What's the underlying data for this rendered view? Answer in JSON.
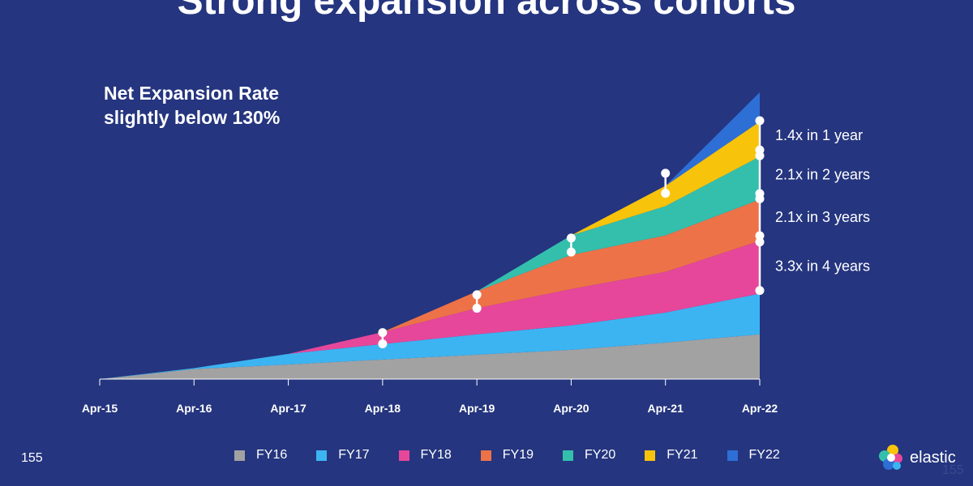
{
  "slide": {
    "title": "Strong expansion across cohorts",
    "subtitle_lines": [
      "Net Expansion Rate",
      "slightly below 130%"
    ],
    "page_number": "155",
    "ghost_page_number": "155",
    "logo_text": "elastic"
  },
  "colors": {
    "background": "#25357f",
    "FY16": "#a2a2a2",
    "FY17": "#3cb4f2",
    "FY18": "#e6479a",
    "FY19": "#ee7248",
    "FY20": "#34bfad",
    "FY21": "#f8c30b",
    "FY22": "#2e6fd6"
  },
  "chart_data": {
    "type": "area",
    "stacked": true,
    "x": [
      "Apr-15",
      "Apr-16",
      "Apr-17",
      "Apr-18",
      "Apr-19",
      "Apr-20",
      "Apr-21",
      "Apr-22"
    ],
    "ylim": [
      0,
      100
    ],
    "series": [
      {
        "name": "FY16",
        "color": "#a2a2a2",
        "values": [
          0,
          3.5,
          5.1,
          6.8,
          8.5,
          10.2,
          12.7,
          15.6
        ]
      },
      {
        "name": "FY17",
        "color": "#3cb4f2",
        "values": [
          0,
          0.3,
          3.7,
          5.4,
          7.1,
          8.5,
          10.5,
          14.2
        ]
      },
      {
        "name": "FY18",
        "color": "#e6479a",
        "values": [
          0,
          0,
          0,
          4.2,
          9.1,
          12.7,
          14.2,
          18.4
        ]
      },
      {
        "name": "FY19",
        "color": "#ee7248",
        "values": [
          0,
          0,
          0,
          0,
          5.9,
          11.9,
          12.7,
          14.4
        ]
      },
      {
        "name": "FY20",
        "color": "#34bfad",
        "values": [
          0,
          0,
          0,
          0,
          0,
          6.8,
          10.2,
          15.0
        ]
      },
      {
        "name": "FY21",
        "color": "#f8c30b",
        "values": [
          0,
          0,
          0,
          0,
          0,
          0,
          7.1,
          12.2
        ]
      },
      {
        "name": "FY22",
        "color": "#2e6fd6",
        "values": [
          0,
          0,
          0,
          0,
          0,
          0,
          0,
          10.2
        ]
      }
    ],
    "annotations": [
      {
        "text": "1.4x in 1 year",
        "x": "Apr-22",
        "from": 90.1,
        "to": 79.9
      },
      {
        "text": "2.1x in 2 years",
        "x": "Apr-22",
        "from": 77.9,
        "to": 64.7
      },
      {
        "text": "2.1x in 3 years",
        "x": "Apr-22",
        "from": 62.9,
        "to": 50.0
      },
      {
        "text": "3.3x in 4 years",
        "x": "Apr-22",
        "from": 47.8,
        "to": 30.9
      }
    ],
    "connectors": [
      {
        "x": "Apr-18",
        "from": 16.2,
        "to": 12.3
      },
      {
        "x": "Apr-19",
        "from": 29.4,
        "to": 24.7
      },
      {
        "x": "Apr-20",
        "from": 49.2,
        "to": 44.3
      },
      {
        "x": "Apr-21",
        "from": 71.8,
        "to": 64.8
      }
    ],
    "legend": [
      "FY16",
      "FY17",
      "FY18",
      "FY19",
      "FY20",
      "FY21",
      "FY22"
    ],
    "legend_position": "bottom"
  }
}
